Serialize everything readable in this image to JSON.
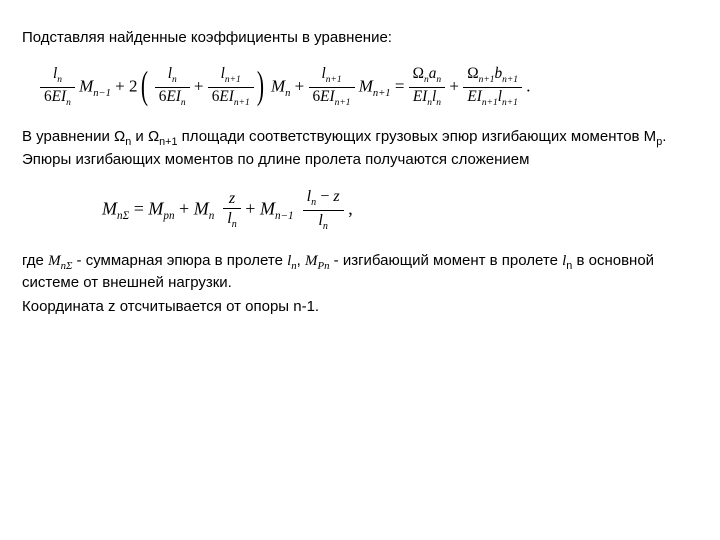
{
  "para1": "Подставляя найденные коэффициенты в уравнение:",
  "eq1": {
    "f1_num": "l",
    "f1_num_sub": "n",
    "f1_den_pre": "6",
    "f1_den_E": "E",
    "f1_den_I": "I",
    "f1_den_sub": "n",
    "M1": "M",
    "M1_sub": "n−1",
    "plus1": " + 2",
    "f2_num": "l",
    "f2_num_sub": "n",
    "f2_den_pre": "6",
    "f2_den_E": "E",
    "f2_den_I": "I",
    "f2_den_sub": "n",
    "plus2": " + ",
    "f3_num": "l",
    "f3_num_sub": "n+1",
    "f3_den_pre": "6",
    "f3_den_E": "E",
    "f3_den_I": "I",
    "f3_den_sub": "n+1",
    "M2": "M",
    "M2_sub": "n",
    "plus3": " + ",
    "f4_num": "l",
    "f4_num_sub": "n+1",
    "f4_den_pre": "6",
    "f4_den_E": "E",
    "f4_den_I": "I",
    "f4_den_sub": "n+1",
    "M3": "M",
    "M3_sub": "n+1",
    "equals": " = ",
    "f5_num_O": "Ω",
    "f5_num_Osub": "n",
    "f5_num_a": "a",
    "f5_num_asub": "n",
    "f5_den_E": "E",
    "f5_den_I": "I",
    "f5_den_Isub": "n",
    "f5_den_l": "l",
    "f5_den_lsub": "n",
    "plus4": " + ",
    "f6_num_O": "Ω",
    "f6_num_Osub": "n+1",
    "f6_num_b": "b",
    "f6_num_bsub": "n+1",
    "f6_den_E": "E",
    "f6_den_I": "I",
    "f6_den_Isub": "n+1",
    "f6_den_l": "l",
    "f6_den_lsub": "n+1",
    "period": " ."
  },
  "para2_a": "В уравнении Ω",
  "para2_a_sub": "n",
  "para2_b": " и Ω",
  "para2_b_sub": "n+1",
  "para2_c": " площади соответствующих грузовых эпюр изгибающих моментов M",
  "para2_c_sub": "p",
  "para2_d": ". Эпюры изгибающих моментов по длине пролета получаются сложением",
  "eq2": {
    "M": "M",
    "Msub": "nΣ",
    "eq": " = ",
    "Mp": "M",
    "Mpsub": "pn",
    "plus1": " + ",
    "Mn": "M",
    "Mnsub": "n",
    "f1_num": "z",
    "f1_den": "l",
    "f1_den_sub": "n",
    "plus2": " + ",
    "Mn1": "M",
    "Mn1sub": "n−1",
    "f2_num_l": "l",
    "f2_num_lsub": "n",
    "f2_num_mid": " − ",
    "f2_num_z": "z",
    "f2_den": "l",
    "f2_den_sub": "n",
    "comma": " ,"
  },
  "para3_a": "где ",
  "para3_M": "M",
  "para3_Msub": "nΣ",
  "para3_b": " - суммарная эпюра в пролете ",
  "para3_l": "l",
  "para3_lsub": "n",
  "para3_c": ", ",
  "para3_Mp": "M",
  "para3_Mpsub": "Pn",
  "para3_d": " - изгибающий момент в пролете ",
  "para3_l2": "l",
  "para3_l2sub": "n",
  "para3_e": " в основной системе от внешней нагрузки.",
  "para4": "Координата z отсчитывается от опоры n-1."
}
